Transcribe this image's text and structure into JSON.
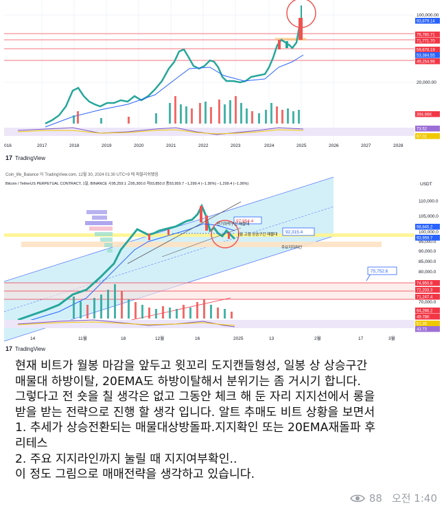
{
  "chart_top": {
    "y_ticks": [
      "100,000.00",
      "20,000.00"
    ],
    "price_labels": [
      {
        "text": "93,879.14",
        "color": "#2962ff"
      },
      {
        "text": "76,760.71",
        "color": "#f23645"
      },
      {
        "text": "71,771.70",
        "color": "#f23645"
      },
      {
        "text": "59,678.19",
        "color": "#f23645"
      },
      {
        "text": "53,384.55",
        "color": "#2962ff"
      },
      {
        "text": "49,254.96",
        "color": "#f23645"
      },
      {
        "text": "394.66K",
        "color": "#f23645"
      },
      {
        "text": "73.52",
        "color": "#9c6fd6"
      },
      {
        "text": "67.02",
        "color": "#f0c800"
      }
    ],
    "x_labels": [
      "016",
      "2017",
      "2018",
      "2019",
      "2020",
      "2021",
      "2022",
      "2023",
      "2024",
      "2025",
      "2026",
      "2027",
      "2028"
    ],
    "logo": "TradingView"
  },
  "chart_bottom": {
    "header_line": "Coin_life_Balance 이 TradingView.com, 12월 30, 2024 01:30 UTC+9 에 퍼블리쉬됐음",
    "symbol_line": "Bitcoin / TetherUS PERPETUAL CONTRACT, 1일, BINANCE 시95,259.1 고95,300.0 저93,850.0 종93,959.7 −1,299.4 (−1.36%) −1,299.4 (−1.36%)",
    "currency": "USDT",
    "y_ticks": [
      "110,000.0",
      "105,000.0",
      "100,000.0",
      "95,000.0",
      "90,000.0",
      "85,000.0",
      "80,000.0",
      "70,000.0"
    ],
    "price_labels": [
      {
        "text": "98,845.2",
        "color": "#2962ff"
      },
      {
        "text": "93,959.7",
        "color": "#2962ff"
      },
      {
        "text": "74,950.8",
        "color": "#f23645"
      },
      {
        "text": "72,203.3",
        "color": "#f23645"
      },
      {
        "text": "71,247.4",
        "color": "#f23645"
      },
      {
        "text": "64,266.2",
        "color": "#f23645"
      },
      {
        "text": "49.78K",
        "color": "#f23645"
      },
      {
        "text": "51.35",
        "color": "#f0c800"
      },
      {
        "text": "43.73",
        "color": "#9c6fd6"
      }
    ],
    "annotations": {
      "price_box_1": "97,954.4",
      "price_box_2": "92,315.4",
      "price_box_3": "75,752.6",
      "label_short_high": "단기하락구간 매물대",
      "label_high_zone": "1월 고점 상승구간 매물대",
      "label_support": "주요지지라인"
    },
    "x_labels": [
      "14",
      "11월",
      "18",
      "12월",
      "16",
      "2025",
      "13",
      "2월",
      "17",
      "3월"
    ],
    "logo": "TradingView"
  },
  "caption_lines": [
    "현재 비트가 월봉 마감을 앞두고 윗꼬리 도지캔들형성, 일봉 상 상승구간",
    "매물대 하방이탈, 20EMA도 하방이탈해서 분위기는 좀 거시기 합니다.",
    "그렇다고 전 숏을 칠 생각은 없고 그동안 체크 해 둔 자리 지지선에서 롱을",
    "받을 받는 전략으로 진행 할 생각 입니다. 알트 추매도 비트 상황을 보면서",
    "1. 추세가 상승전환되는 매물대상방돌파.지지확인 또는 20EMA재돌파 후",
    "리테스",
    "2. 주요 지지라인까지 눌릴 때 지지여부확인..",
    "이 정도 그림으로 매매전략을 생각하고 있습니다."
  ],
  "message_meta": {
    "views": "88",
    "time": "오전 1:40"
  },
  "colors": {
    "up": "#26a69a",
    "down": "#ef5350",
    "ema": "#2962ff",
    "channel_fill": "#c8ecf8",
    "support_zone": "#fde2c4",
    "highlight_yellow": "#fff48c"
  }
}
